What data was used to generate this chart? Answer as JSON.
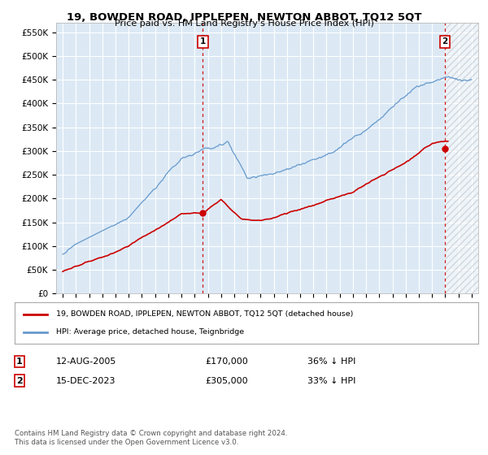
{
  "title": "19, BOWDEN ROAD, IPPLEPEN, NEWTON ABBOT, TQ12 5QT",
  "subtitle": "Price paid vs. HM Land Registry's House Price Index (HPI)",
  "legend_label_red": "19, BOWDEN ROAD, IPPLEPEN, NEWTON ABBOT, TQ12 5QT (detached house)",
  "legend_label_blue": "HPI: Average price, detached house, Teignbridge",
  "annotation1_label": "1",
  "annotation1_date": "12-AUG-2005",
  "annotation1_price": "£170,000",
  "annotation1_hpi": "36% ↓ HPI",
  "annotation2_label": "2",
  "annotation2_date": "15-DEC-2023",
  "annotation2_price": "£305,000",
  "annotation2_hpi": "33% ↓ HPI",
  "footer": "Contains HM Land Registry data © Crown copyright and database right 2024.\nThis data is licensed under the Open Government Licence v3.0.",
  "ylim": [
    0,
    570000
  ],
  "yticks": [
    0,
    50000,
    100000,
    150000,
    200000,
    250000,
    300000,
    350000,
    400000,
    450000,
    500000,
    550000
  ],
  "ytick_labels": [
    "£0",
    "£50K",
    "£100K",
    "£150K",
    "£200K",
    "£250K",
    "£300K",
    "£350K",
    "£400K",
    "£450K",
    "£500K",
    "£550K"
  ],
  "background_color": "#dce9f5",
  "grid_color": "#ffffff",
  "red_color": "#cc0000",
  "blue_color": "#6699cc",
  "marker1_x": 2005.62,
  "marker1_y": 170000,
  "marker2_x": 2023.96,
  "marker2_y": 305000,
  "xmin": 1994.5,
  "xmax": 2026.5
}
